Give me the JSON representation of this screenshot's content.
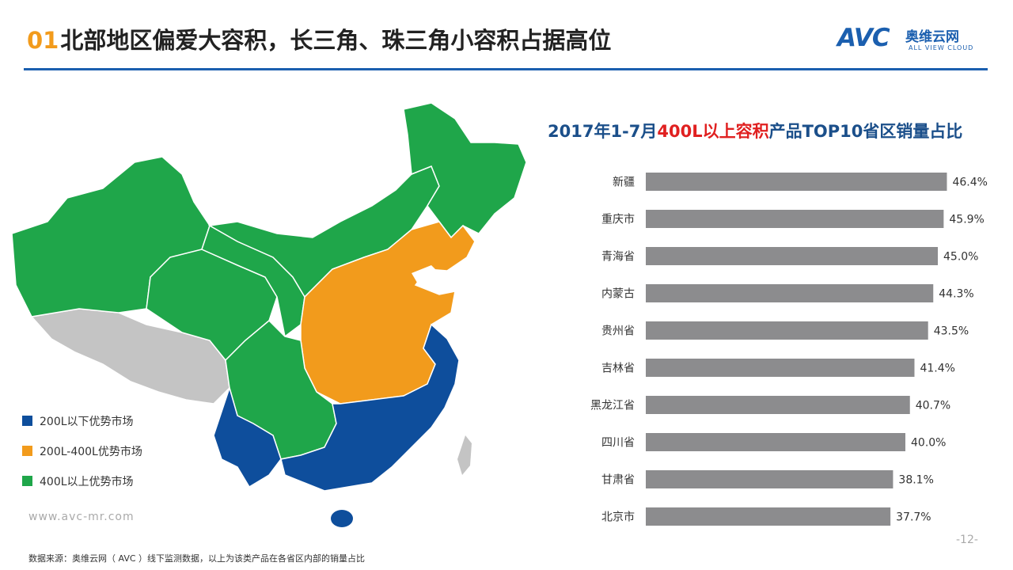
{
  "header": {
    "title_num": "01",
    "title_text": "北部地区偏爱大容积，长三角、珠三角小容积占据高位"
  },
  "logo": {
    "mark": "AVC",
    "cn": "奥维云网",
    "en": "ALL VIEW CLOUD"
  },
  "map": {
    "legend": [
      {
        "label": "200L以下优势市场",
        "color": "#0E4E9C"
      },
      {
        "label": "200L-400L优势市场",
        "color": "#F29B1C"
      },
      {
        "label": "400L以上优势市场",
        "color": "#1FA64A"
      }
    ],
    "unknown_color": "#C4C4C4"
  },
  "chart_title": {
    "part1": "2017年1-7月",
    "highlight": "400L以上容积",
    "part2": "产品TOP10省区销量占比"
  },
  "chart_data": {
    "type": "bar",
    "orientation": "horizontal",
    "categories": [
      "新疆",
      "重庆市",
      "青海省",
      "内蒙古",
      "贵州省",
      "吉林省",
      "黑龙江省",
      "四川省",
      "甘肃省",
      "北京市"
    ],
    "values": [
      46.4,
      45.9,
      45.0,
      44.3,
      43.5,
      41.4,
      40.7,
      40.0,
      38.1,
      37.7
    ],
    "labels": [
      "46.4%",
      "45.9%",
      "45.0%",
      "44.3%",
      "43.5%",
      "41.4%",
      "40.7%",
      "40.0%",
      "38.1%",
      "37.7%"
    ],
    "bar_color": "#8C8C8E",
    "xlim": [
      0,
      50
    ],
    "grid": false,
    "legend": "none"
  },
  "footer": {
    "url": "www.avc-mr.com",
    "source": "数据来源：奥维云网（ AVC ）线下监测数据，以上为该类产品在各省区内部的销量占比",
    "page": "-12-"
  }
}
